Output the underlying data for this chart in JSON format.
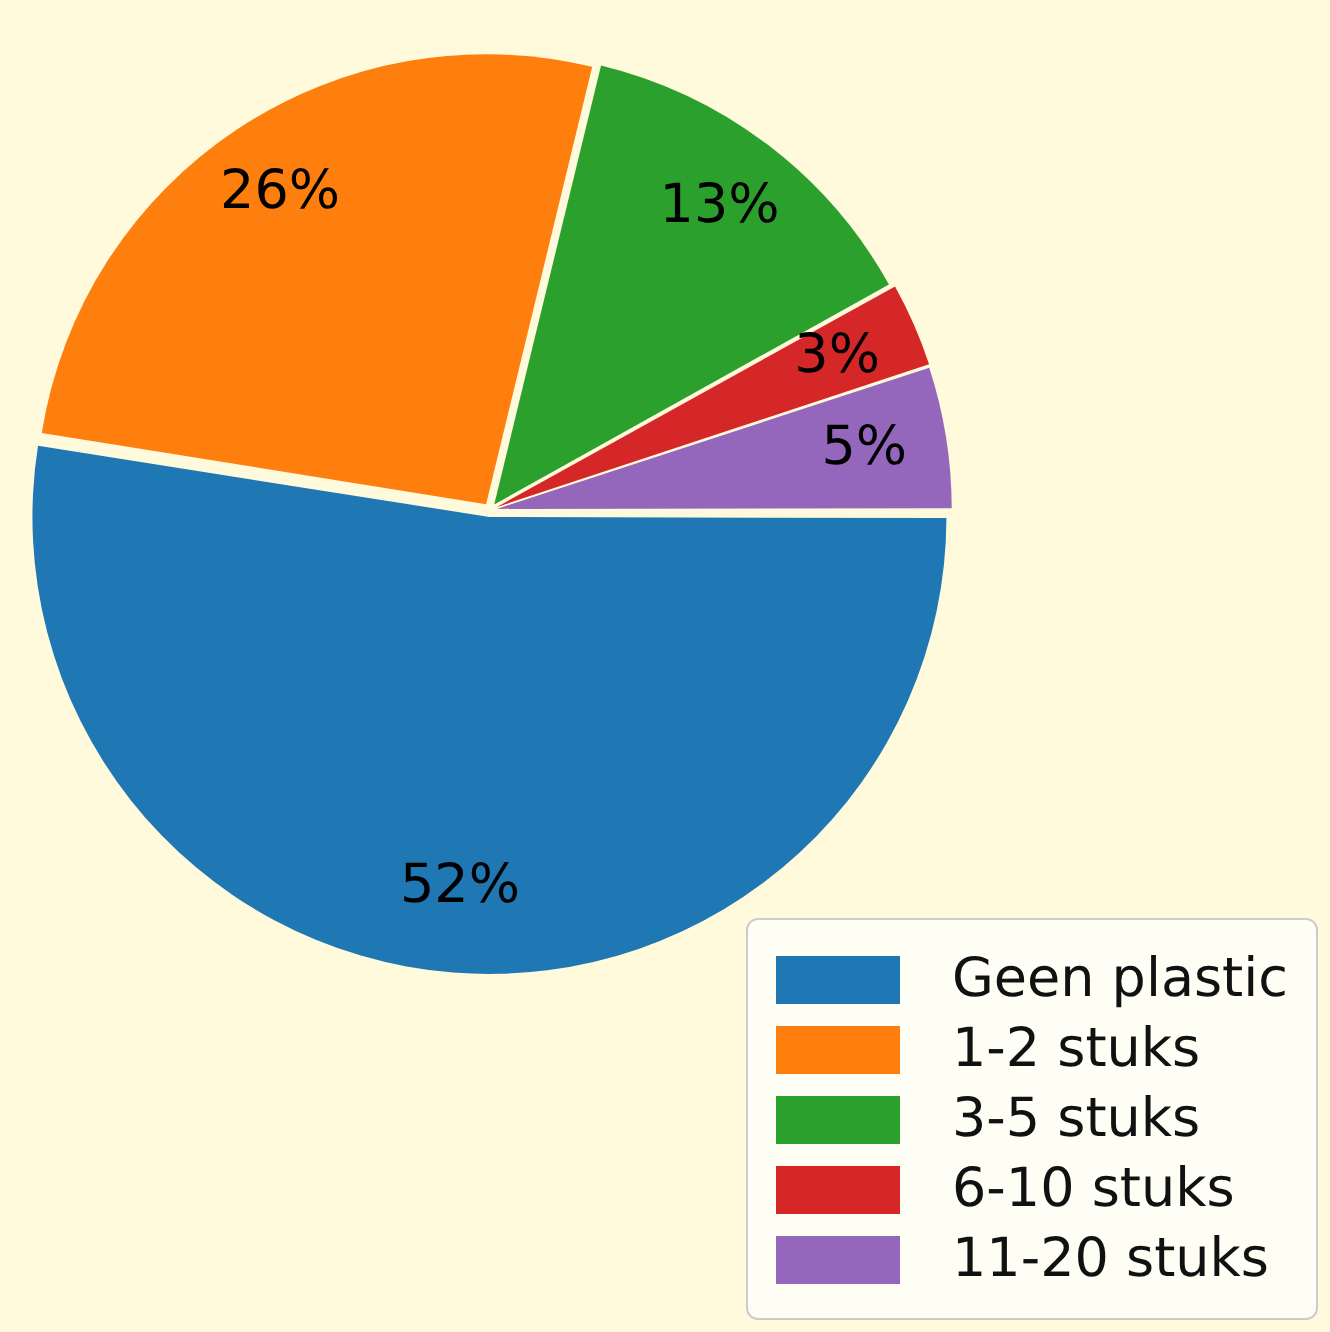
{
  "chart_data": {
    "type": "pie",
    "categories": [
      "Geen plastic",
      "1-2 stuks",
      "3-5 stuks",
      "6-10 stuks",
      "11-20 stuks"
    ],
    "values": [
      52,
      26,
      13,
      3,
      5
    ],
    "colors": [
      "#1f77b4",
      "#ff7f0e",
      "#2ca02c",
      "#d62728",
      "#9467bd"
    ],
    "value_labels": [
      "52%",
      "26%",
      "13%",
      "3%",
      "5%"
    ],
    "legend": "bottom right"
  }
}
